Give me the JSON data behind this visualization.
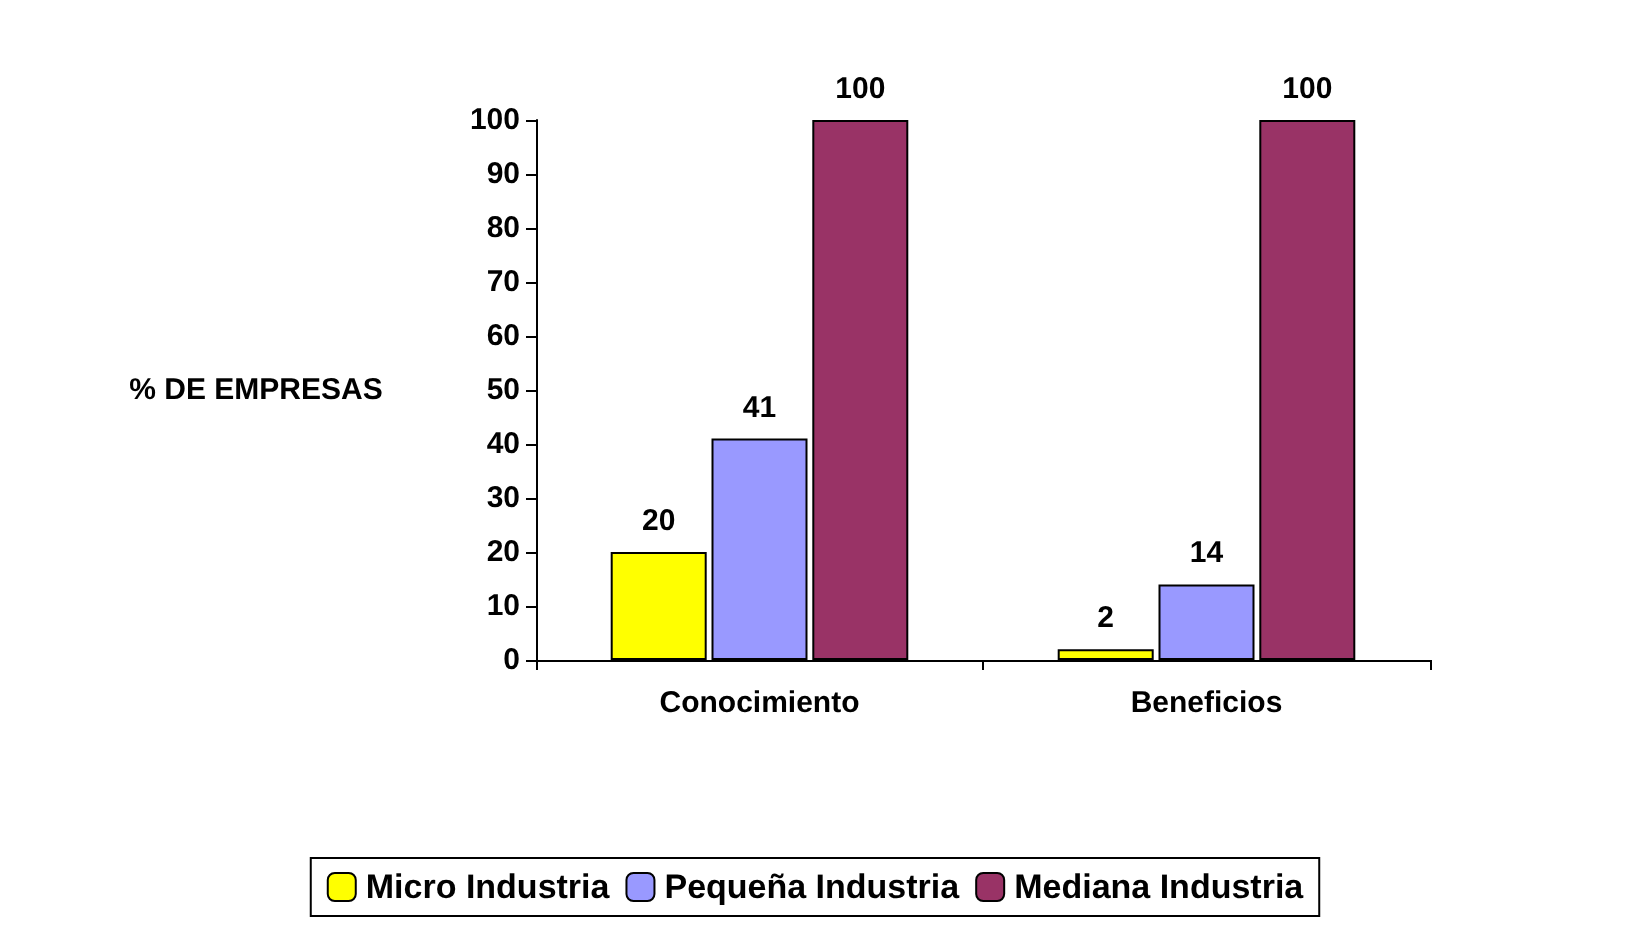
{
  "chart_data": {
    "type": "bar",
    "ylabel": "% DE EMPRESAS",
    "categories": [
      "Conocimiento",
      "Beneficios"
    ],
    "series": [
      {
        "name": "Micro Industria",
        "color": "#ffff00",
        "values": [
          20,
          2
        ]
      },
      {
        "name": "Pequeña Industria",
        "color": "#9999ff",
        "values": [
          41,
          14
        ]
      },
      {
        "name": "Mediana Industria",
        "color": "#993366",
        "values": [
          100,
          100
        ]
      }
    ],
    "ylim": [
      0,
      100
    ],
    "yticks": [
      0,
      10,
      20,
      30,
      40,
      50,
      60,
      70,
      80,
      90,
      100
    ],
    "data_labels": true,
    "grid": false,
    "legend": "bottom"
  }
}
